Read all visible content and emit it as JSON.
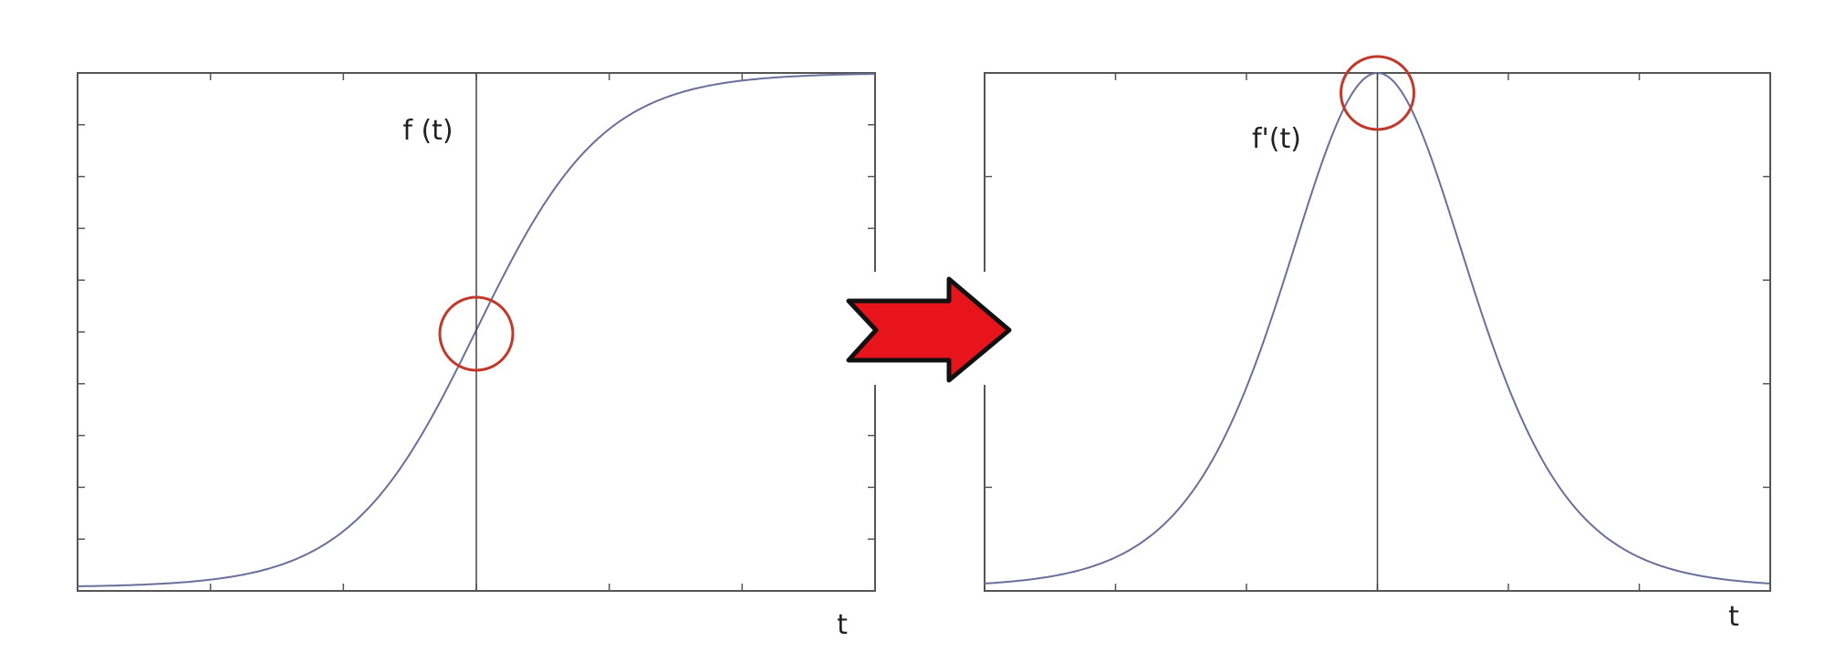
{
  "left_panel": {
    "curve_label": "f (t)",
    "axis_label": "t"
  },
  "right_panel": {
    "curve_label": "f'(t)",
    "axis_label": "t"
  }
}
